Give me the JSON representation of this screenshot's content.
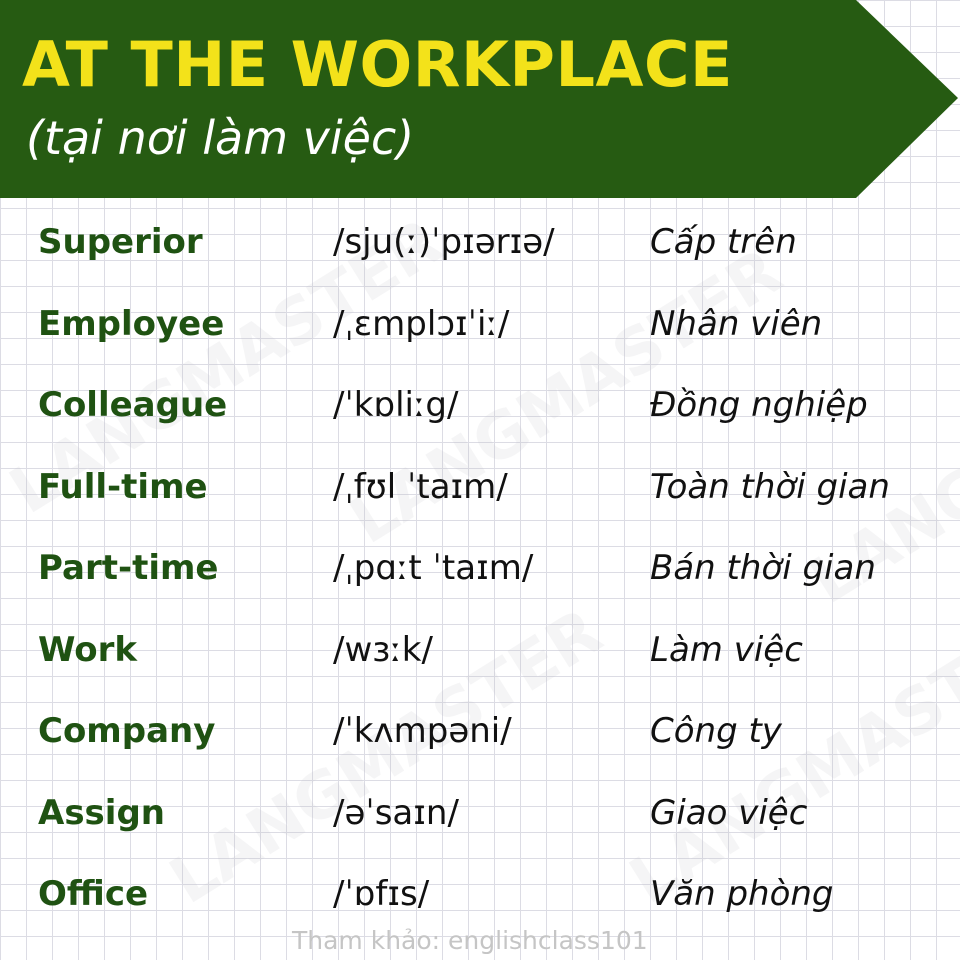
{
  "header": {
    "title": "AT THE WORKPLACE",
    "subtitle": "(tại nơi làm việc)",
    "banner_color": "#265b12",
    "title_color": "#f3e21a"
  },
  "watermark": {
    "text": "LANGMASTER"
  },
  "vocabulary": [
    {
      "word": "Superior",
      "ipa": "/sju(ː)ˈpɪərɪə/",
      "meaning": "Cấp trên"
    },
    {
      "word": "Employee",
      "ipa": "/ˌɛmplɔɪˈiː/",
      "meaning": "Nhân viên"
    },
    {
      "word": "Colleague",
      "ipa": "/ˈkɒliːg/",
      "meaning": "Đồng nghiệp"
    },
    {
      "word": "Full-time",
      "ipa": "/ˌfʊl ˈtaɪm/",
      "meaning": "Toàn thời gian"
    },
    {
      "word": "Part-time",
      "ipa": "/ˌpɑːt ˈtaɪm/",
      "meaning": "Bán thời gian"
    },
    {
      "word": "Work",
      "ipa": "/wɜːk/",
      "meaning": "Làm việc"
    },
    {
      "word": "Company",
      "ipa": "/ˈkʌmpəni/",
      "meaning": "Công ty"
    },
    {
      "word": "Assign",
      "ipa": "/əˈsaɪn/",
      "meaning": "Giao việc"
    },
    {
      "word": "Office",
      "ipa": "/ˈɒfɪs/",
      "meaning": "Văn phòng"
    }
  ],
  "footer": {
    "reference": "Tham khảo: englishclass101"
  }
}
